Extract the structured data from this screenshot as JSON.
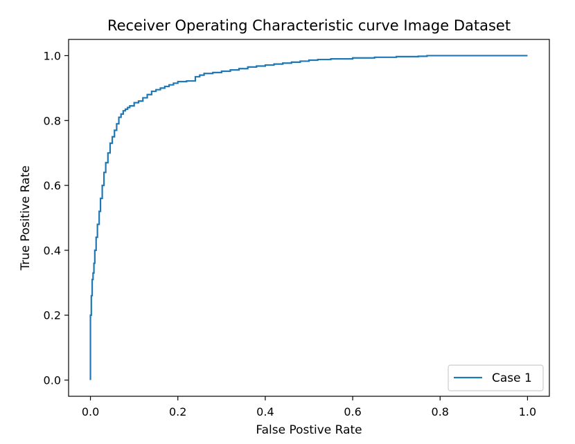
{
  "chart_data": {
    "type": "line",
    "title": "Receiver Operating Characteristic curve Image Dataset",
    "xlabel": "False Postive Rate",
    "ylabel": "True Positive Rate",
    "xlim": [
      -0.05,
      1.05
    ],
    "ylim": [
      -0.05,
      1.05
    ],
    "xticks": [
      0.0,
      0.2,
      0.4,
      0.6,
      0.8,
      1.0
    ],
    "yticks": [
      0.0,
      0.2,
      0.4,
      0.6,
      0.8,
      1.0
    ],
    "xtick_labels": [
      "0.0",
      "0.2",
      "0.4",
      "0.6",
      "0.8",
      "1.0"
    ],
    "ytick_labels": [
      "0.0",
      "0.2",
      "0.4",
      "0.6",
      "0.8",
      "1.0"
    ],
    "grid": false,
    "legend_position": "lower-right",
    "series": [
      {
        "name": "Case 1",
        "color": "#1f77b4",
        "x": [
          0.0,
          0.0,
          0.0,
          0.002,
          0.004,
          0.006,
          0.008,
          0.01,
          0.013,
          0.016,
          0.02,
          0.023,
          0.027,
          0.031,
          0.035,
          0.04,
          0.045,
          0.05,
          0.055,
          0.06,
          0.065,
          0.07,
          0.075,
          0.08,
          0.085,
          0.09,
          0.1,
          0.11,
          0.12,
          0.13,
          0.14,
          0.15,
          0.16,
          0.17,
          0.18,
          0.19,
          0.2,
          0.22,
          0.24,
          0.25,
          0.26,
          0.28,
          0.3,
          0.32,
          0.34,
          0.36,
          0.38,
          0.4,
          0.42,
          0.44,
          0.46,
          0.48,
          0.5,
          0.52,
          0.55,
          0.6,
          0.65,
          0.7,
          0.75,
          0.77,
          0.8,
          0.9,
          1.0
        ],
        "y": [
          0.0,
          0.12,
          0.2,
          0.26,
          0.31,
          0.33,
          0.36,
          0.4,
          0.44,
          0.48,
          0.52,
          0.56,
          0.6,
          0.64,
          0.67,
          0.7,
          0.73,
          0.75,
          0.77,
          0.79,
          0.81,
          0.82,
          0.83,
          0.835,
          0.84,
          0.845,
          0.855,
          0.86,
          0.87,
          0.88,
          0.89,
          0.895,
          0.9,
          0.905,
          0.91,
          0.915,
          0.92,
          0.922,
          0.935,
          0.94,
          0.945,
          0.948,
          0.952,
          0.956,
          0.96,
          0.965,
          0.968,
          0.971,
          0.974,
          0.977,
          0.98,
          0.983,
          0.986,
          0.988,
          0.99,
          0.993,
          0.995,
          0.997,
          0.998,
          1.0,
          1.0,
          1.0,
          1.0
        ]
      }
    ]
  }
}
